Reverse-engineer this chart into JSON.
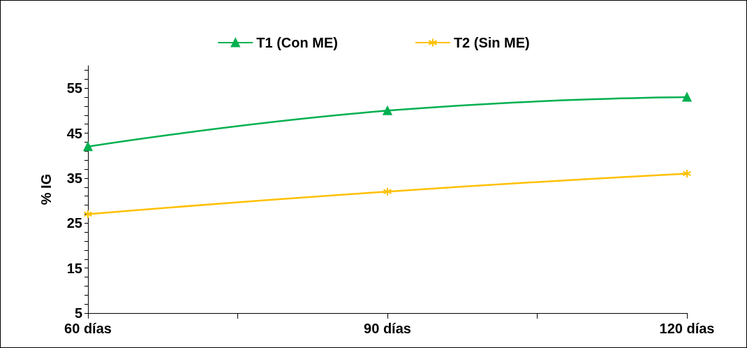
{
  "chart_data": {
    "type": "line",
    "ylabel": "% IG",
    "x": [
      60,
      90,
      120
    ],
    "series": [
      {
        "name": "T1 (Con ME)",
        "color": "#00b050",
        "values": [
          42,
          50,
          53
        ],
        "marker": "triangle"
      },
      {
        "name": "T2 (Sin ME)",
        "color": "#ffc000",
        "values": [
          27,
          32,
          36
        ],
        "marker": "cross"
      }
    ],
    "xlim": [
      60,
      120
    ],
    "xticks": [
      {
        "value": 60,
        "label": "60 días"
      },
      {
        "value": 75,
        "label": null
      },
      {
        "value": 90,
        "label": "90 días"
      },
      {
        "value": 105,
        "label": null
      },
      {
        "value": 120,
        "label": "120 días"
      }
    ],
    "ylim": [
      5,
      60
    ],
    "yticks": [
      5,
      {
        "value": 7,
        "label": null
      },
      {
        "value": 9,
        "label": null
      },
      {
        "value": 11,
        "label": null
      },
      {
        "value": 13,
        "label": null
      },
      15,
      {
        "value": 17,
        "label": null
      },
      {
        "value": 19,
        "label": null
      },
      {
        "value": 21,
        "label": null
      },
      {
        "value": 23,
        "label": null
      },
      25,
      {
        "value": 27,
        "label": null
      },
      {
        "value": 29,
        "label": null
      },
      {
        "value": 31,
        "label": null
      },
      {
        "value": 33,
        "label": null
      },
      35,
      {
        "value": 37,
        "label": null
      },
      {
        "value": 39,
        "label": null
      },
      {
        "value": 41,
        "label": null
      },
      {
        "value": 43,
        "label": null
      },
      45,
      {
        "value": 47,
        "label": null
      },
      {
        "value": 49,
        "label": null
      },
      {
        "value": 51,
        "label": null
      },
      {
        "value": 53,
        "label": null
      },
      55,
      {
        "value": 57,
        "label": null
      },
      {
        "value": 59,
        "label": null
      }
    ],
    "grid": false,
    "legend": "top",
    "line_style": "solid"
  }
}
